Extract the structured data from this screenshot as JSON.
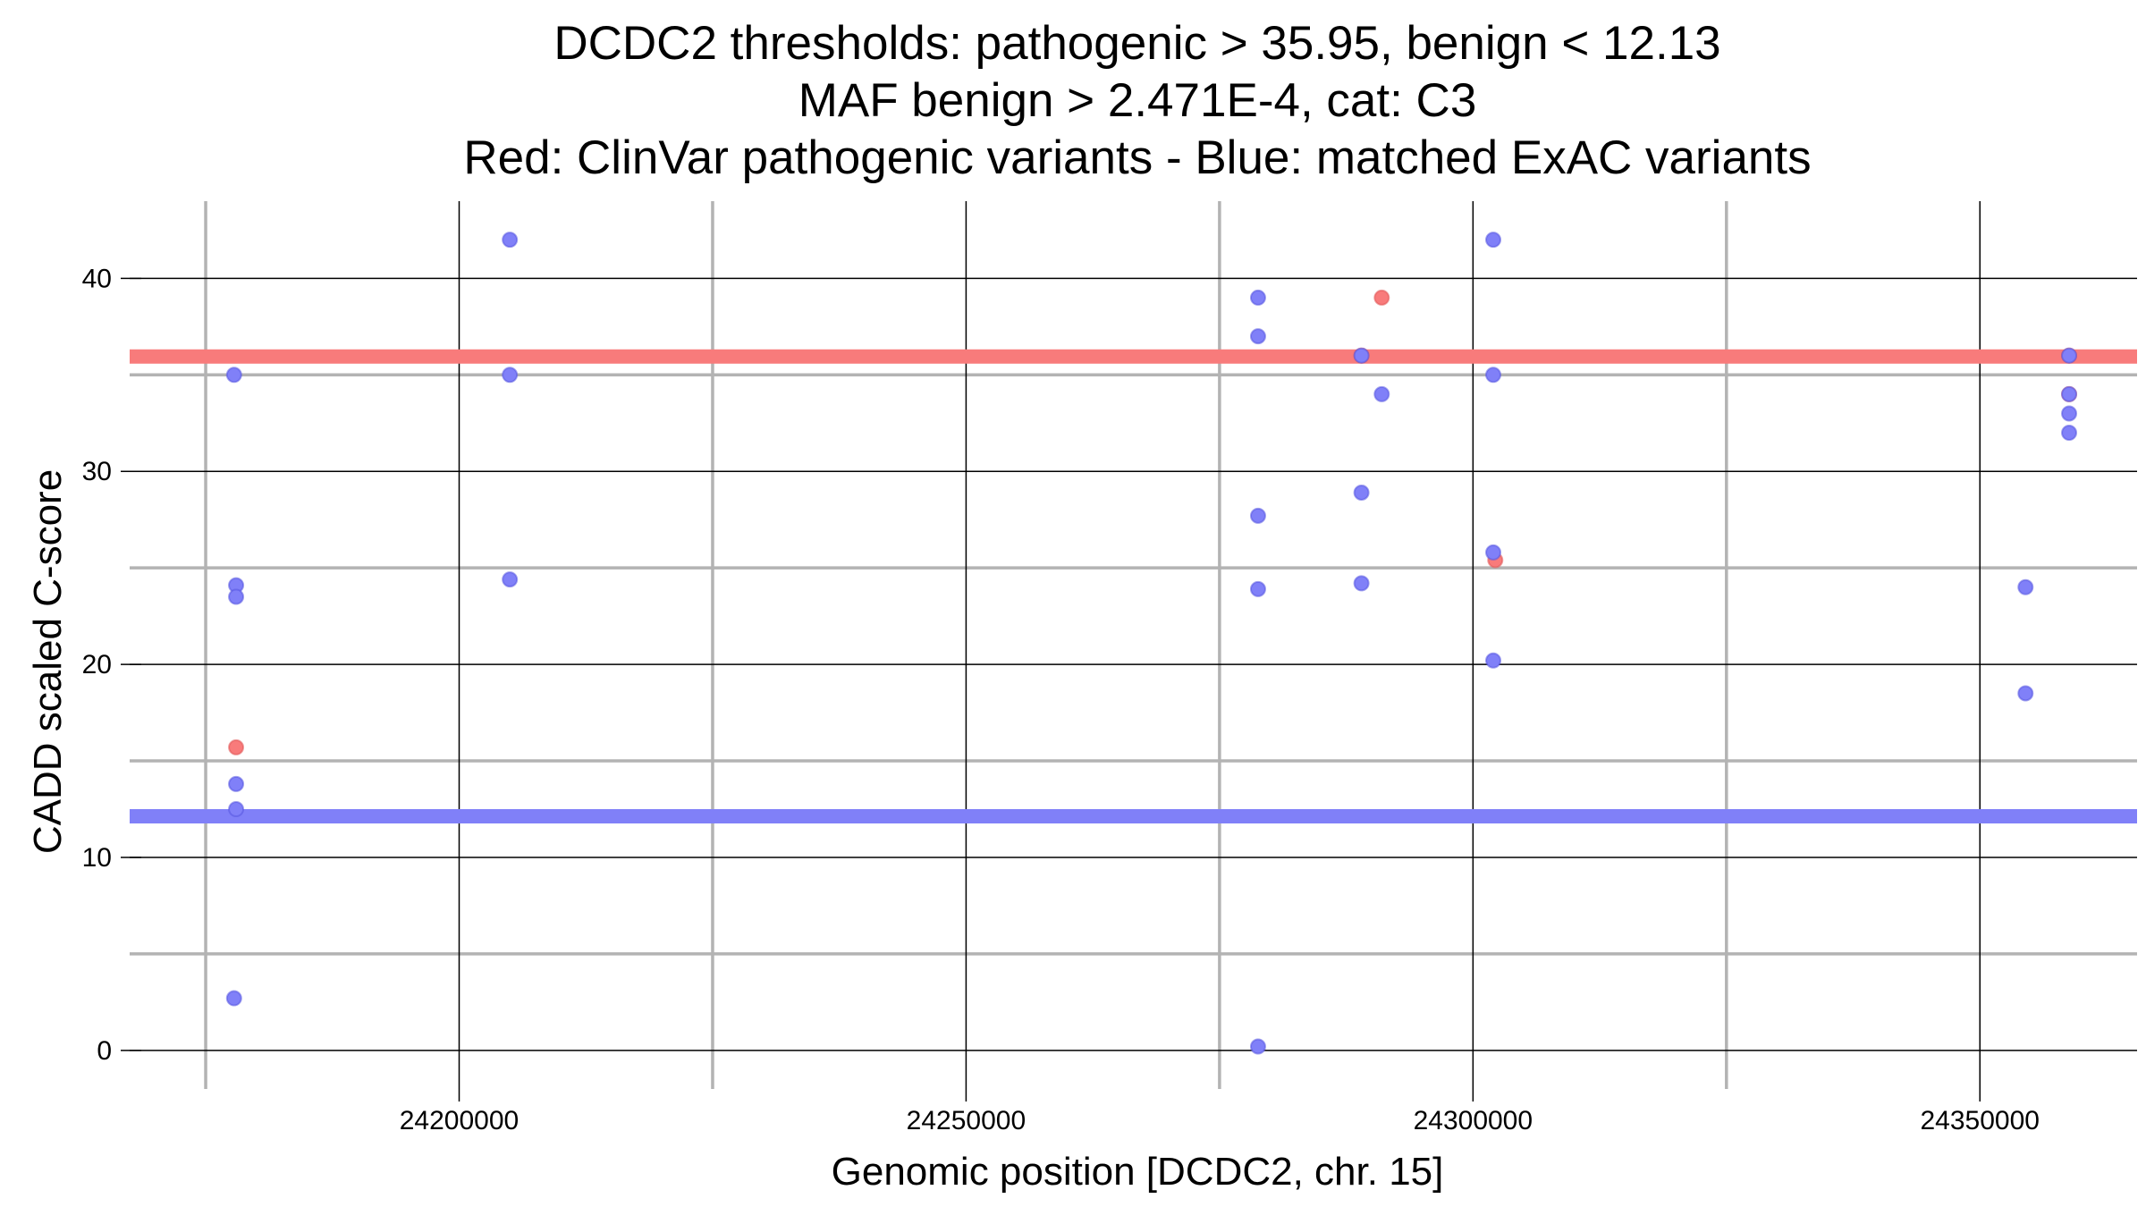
{
  "chart_data": {
    "type": "scatter",
    "title": [
      "DCDC2 thresholds: pathogenic > 35.95, benign < 12.13",
      "MAF benign > 2.471E-4, cat: C3",
      "Red: ClinVar pathogenic variants - Blue: matched ExAC variants"
    ],
    "xlabel": "Genomic position [DCDC2, chr. 15]",
    "ylabel": "CADD scaled C-score",
    "xlim": [
      24167500,
      24365500
    ],
    "ylim": [
      -2,
      44
    ],
    "x_ticks": [
      24200000,
      24250000,
      24300000,
      24350000
    ],
    "x_minor_ticks": [
      24175000,
      24225000,
      24275000,
      24325000
    ],
    "y_ticks": [
      0,
      10,
      20,
      30,
      40
    ],
    "y_minor_ticks": [
      5,
      15,
      25,
      35
    ],
    "grid": true,
    "thresholds": [
      {
        "name": "pathogenic",
        "value": 35.95,
        "color": "#f87b7b"
      },
      {
        "name": "benign",
        "value": 12.13,
        "color": "#8080f8"
      }
    ],
    "series": [
      {
        "color": "#f87b7b",
        "points": [
          [
            24178000,
            15.7
          ],
          [
            24289000,
            36.0
          ],
          [
            24291000,
            39.0
          ],
          [
            24302200,
            25.4
          ],
          [
            24358800,
            36.0
          ],
          [
            24358800,
            34.0
          ]
        ]
      },
      {
        "color": "#8080f8",
        "points": [
          [
            24177800,
            35.0
          ],
          [
            24178000,
            24.1
          ],
          [
            24178000,
            23.5
          ],
          [
            24178000,
            13.8
          ],
          [
            24178000,
            12.5
          ],
          [
            24177800,
            2.7
          ],
          [
            24205000,
            42.0
          ],
          [
            24205000,
            35.0
          ],
          [
            24205000,
            24.4
          ],
          [
            24278800,
            39.0
          ],
          [
            24278800,
            37.0
          ],
          [
            24278800,
            27.7
          ],
          [
            24278800,
            23.9
          ],
          [
            24278800,
            0.2
          ],
          [
            24289000,
            36.0
          ],
          [
            24289000,
            28.9
          ],
          [
            24289000,
            24.2
          ],
          [
            24291000,
            34.0
          ],
          [
            24302000,
            42.0
          ],
          [
            24302000,
            35.0
          ],
          [
            24302000,
            25.8
          ],
          [
            24302000,
            20.2
          ],
          [
            24354500,
            24.0
          ],
          [
            24354500,
            18.5
          ],
          [
            24358800,
            36.0
          ],
          [
            24358800,
            34.0
          ],
          [
            24358800,
            33.0
          ],
          [
            24358800,
            32.0
          ]
        ]
      }
    ]
  }
}
